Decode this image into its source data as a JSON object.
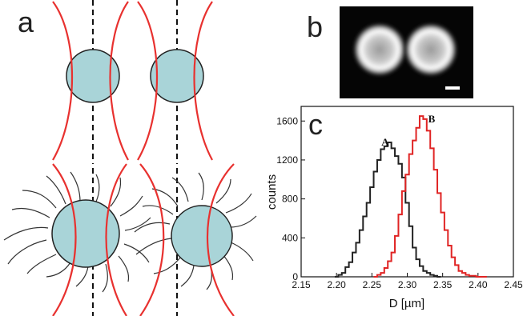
{
  "panels": {
    "a": "a",
    "b": "b",
    "c": "c"
  },
  "colors": {
    "sphere_fill": "#a9d4d8",
    "field_line": "#e8312f",
    "dashed_axis": "#111111",
    "series_A": "#222222",
    "series_B": "#e02424"
  },
  "chart_data": {
    "type": "histogram",
    "xlabel": "D [µm]",
    "ylabel": "counts",
    "xlim": [
      2.15,
      2.45
    ],
    "ylim": [
      0,
      1750
    ],
    "xticks": [
      "2.15",
      "2.20",
      "2.25",
      "2.30",
      "2.35",
      "2.40",
      "2.45"
    ],
    "yticks": [
      "0",
      "400",
      "800",
      "1200",
      "1600"
    ],
    "bin_width": 0.005,
    "series": [
      {
        "name": "A",
        "color": "#222222",
        "x": [
          2.2,
          2.205,
          2.21,
          2.215,
          2.22,
          2.225,
          2.23,
          2.235,
          2.24,
          2.245,
          2.25,
          2.255,
          2.26,
          2.265,
          2.27,
          2.275,
          2.28,
          2.285,
          2.29,
          2.295,
          2.3,
          2.305,
          2.31,
          2.315,
          2.32,
          2.325,
          2.33,
          2.335,
          2.34,
          2.345
        ],
        "values": [
          0,
          20,
          40,
          100,
          150,
          250,
          350,
          480,
          620,
          760,
          920,
          1080,
          1200,
          1310,
          1340,
          1380,
          1320,
          1240,
          1160,
          1020,
          760,
          520,
          300,
          180,
          110,
          60,
          40,
          20,
          10,
          0
        ]
      },
      {
        "name": "B",
        "color": "#e02424",
        "x": [
          2.255,
          2.26,
          2.265,
          2.27,
          2.275,
          2.28,
          2.285,
          2.29,
          2.295,
          2.3,
          2.305,
          2.31,
          2.315,
          2.32,
          2.325,
          2.33,
          2.335,
          2.34,
          2.345,
          2.35,
          2.355,
          2.36,
          2.365,
          2.37,
          2.375,
          2.38,
          2.385,
          2.39,
          2.395,
          2.4,
          2.405,
          2.41
        ],
        "values": [
          0,
          20,
          40,
          90,
          160,
          250,
          420,
          640,
          880,
          1050,
          1260,
          1400,
          1530,
          1650,
          1620,
          1500,
          1320,
          1100,
          860,
          660,
          480,
          320,
          200,
          120,
          60,
          40,
          20,
          10,
          10,
          0,
          0,
          0
        ]
      }
    ]
  }
}
